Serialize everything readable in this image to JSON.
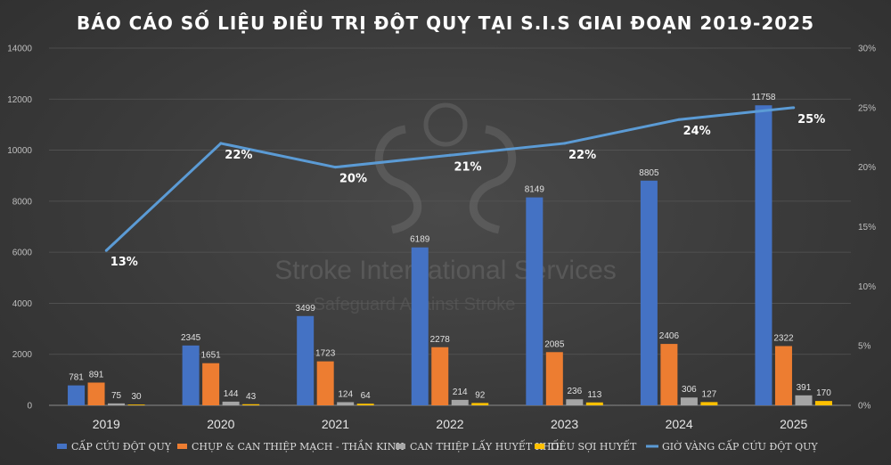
{
  "chart_data": {
    "type": "bar",
    "title": "BÁO CÁO SỐ LIỆU ĐIỀU TRỊ ĐỘT QUỴ TẠI S.I.S GIAI ĐOẠN 2019-2025",
    "categories": [
      "2019",
      "2020",
      "2021",
      "2022",
      "2023",
      "2024",
      "2025"
    ],
    "series": [
      {
        "name": "CẤP CỨU ĐỘT QUỴ",
        "type": "bar",
        "color": "#4472c4",
        "values": [
          781,
          2345,
          3499,
          6189,
          8149,
          8805,
          11758
        ]
      },
      {
        "name": "CHỤP & CAN THIỆP MẠCH - THẦN KINH",
        "type": "bar",
        "color": "#ed7d31",
        "values": [
          891,
          1651,
          1723,
          2278,
          2085,
          2406,
          2322
        ]
      },
      {
        "name": "CAN THIỆP LẤY HUYẾT KHỐI",
        "type": "bar",
        "color": "#a5a5a5",
        "values": [
          75,
          144,
          124,
          214,
          236,
          306,
          391
        ]
      },
      {
        "name": "TIÊU SỢI HUYẾT",
        "type": "bar",
        "color": "#ffc000",
        "values": [
          30,
          43,
          64,
          92,
          113,
          127,
          170
        ]
      },
      {
        "name": "GIỜ VÀNG CẤP CỨU ĐỘT QUỴ",
        "type": "line",
        "axis": "secondary",
        "color": "#5b9bd5",
        "values": [
          13,
          22,
          20,
          21,
          22,
          24,
          25
        ],
        "labels": [
          "13%",
          "22%",
          "20%",
          "21%",
          "22%",
          "24%",
          "25%"
        ]
      }
    ],
    "y_axis": {
      "ylim": [
        0,
        14000
      ],
      "ticks": [
        "0",
        "2000",
        "4000",
        "6000",
        "8000",
        "10000",
        "12000",
        "14000"
      ]
    },
    "y2_axis": {
      "ylim": [
        0,
        30
      ],
      "ticks": [
        "0%",
        "5%",
        "10%",
        "15%",
        "20%",
        "25%",
        "30%"
      ]
    },
    "grid": true,
    "legend_position": "bottom"
  },
  "watermark": {
    "line1": "Stroke International Services",
    "line2": "Safeguard Against Stroke"
  }
}
